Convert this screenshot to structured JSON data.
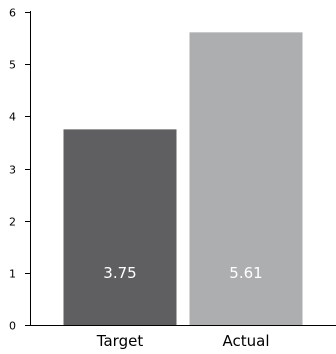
{
  "chart_data": {
    "type": "bar",
    "title": "",
    "xlabel": "",
    "ylabel": "",
    "categories": [
      "Target",
      "Actual"
    ],
    "values": [
      3.75,
      5.61
    ],
    "data_labels": [
      "3.75",
      "5.61"
    ],
    "colors": [
      "#5f5f61",
      "#adaeb0"
    ],
    "label_color": "#ffffff",
    "ylim": [
      0,
      6
    ],
    "yticks": [
      0,
      1,
      2,
      3,
      4,
      5,
      6
    ],
    "ytick_labels": [
      "0",
      "1",
      "2",
      "3",
      "4",
      "5",
      "6"
    ],
    "grid": false,
    "legend": "none"
  }
}
